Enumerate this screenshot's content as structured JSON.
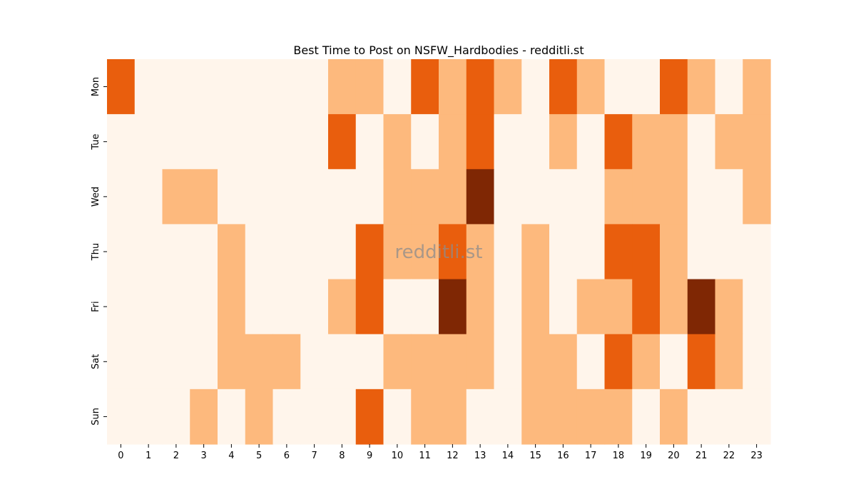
{
  "chart_data": {
    "type": "heatmap",
    "title": "Best Time to Post on NSFW_Hardbodies - redditli.st",
    "watermark": "redditli.st",
    "xlabel": "",
    "ylabel": "",
    "x_categories": [
      "0",
      "1",
      "2",
      "3",
      "4",
      "5",
      "6",
      "7",
      "8",
      "9",
      "10",
      "11",
      "12",
      "13",
      "14",
      "15",
      "16",
      "17",
      "18",
      "19",
      "20",
      "21",
      "22",
      "23"
    ],
    "y_categories": [
      "Mon",
      "Tue",
      "Wed",
      "Thu",
      "Fri",
      "Sat",
      "Sun"
    ],
    "levels_note": "0 = lightest, 3 = darkest",
    "values": [
      [
        2,
        0,
        0,
        0,
        0,
        0,
        0,
        0,
        1,
        1,
        0,
        2,
        1,
        2,
        1,
        0,
        2,
        1,
        0,
        0,
        2,
        1,
        0,
        1
      ],
      [
        0,
        0,
        0,
        0,
        0,
        0,
        0,
        0,
        2,
        0,
        1,
        0,
        1,
        2,
        0,
        0,
        1,
        0,
        2,
        1,
        1,
        0,
        1,
        1
      ],
      [
        0,
        0,
        1,
        1,
        0,
        0,
        0,
        0,
        0,
        0,
        1,
        1,
        1,
        3,
        0,
        0,
        0,
        0,
        1,
        1,
        1,
        0,
        0,
        1
      ],
      [
        0,
        0,
        0,
        0,
        1,
        0,
        0,
        0,
        0,
        2,
        1,
        1,
        2,
        1,
        0,
        1,
        0,
        0,
        2,
        2,
        1,
        0,
        0,
        0
      ],
      [
        0,
        0,
        0,
        0,
        1,
        0,
        0,
        0,
        1,
        2,
        0,
        0,
        3,
        1,
        0,
        1,
        0,
        1,
        1,
        2,
        1,
        3,
        1,
        0
      ],
      [
        0,
        0,
        0,
        0,
        1,
        1,
        1,
        0,
        0,
        0,
        1,
        1,
        1,
        1,
        0,
        1,
        1,
        0,
        2,
        1,
        0,
        2,
        1,
        0
      ],
      [
        0,
        0,
        0,
        1,
        0,
        1,
        0,
        0,
        0,
        2,
        0,
        1,
        1,
        0,
        0,
        1,
        1,
        1,
        1,
        0,
        1,
        0,
        0,
        0
      ]
    ],
    "colors": [
      "#fff5eb",
      "#fdb97d",
      "#e95e0d",
      "#7f2704"
    ],
    "grid": false,
    "legend": "none"
  }
}
